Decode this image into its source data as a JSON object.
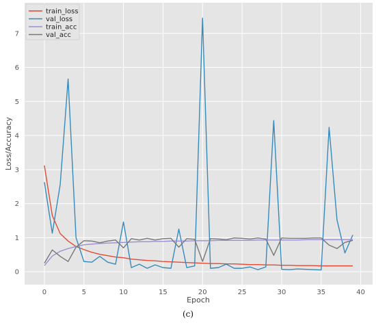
{
  "chart_data": {
    "type": "line",
    "title": "",
    "xlabel": "Epoch",
    "ylabel": "Loss/Accuracy",
    "xlim": [
      -2.5,
      41.5
    ],
    "ylim": [
      -0.38,
      7.9
    ],
    "xticks": [
      0,
      5,
      10,
      15,
      20,
      25,
      30,
      35,
      40
    ],
    "yticks": [
      0,
      1,
      2,
      3,
      4,
      5,
      6,
      7
    ],
    "grid": true,
    "legend": "top-left",
    "x": [
      0,
      1,
      2,
      3,
      4,
      5,
      6,
      7,
      8,
      9,
      10,
      11,
      12,
      13,
      14,
      15,
      16,
      17,
      18,
      19,
      20,
      21,
      22,
      23,
      24,
      25,
      26,
      27,
      28,
      29,
      30,
      31,
      32,
      33,
      34,
      35,
      36,
      37,
      38,
      39
    ],
    "series": [
      {
        "name": "train_loss",
        "color": "#e24a33",
        "values": [
          3.12,
          1.65,
          1.12,
          0.9,
          0.74,
          0.65,
          0.57,
          0.51,
          0.47,
          0.43,
          0.41,
          0.37,
          0.35,
          0.33,
          0.32,
          0.3,
          0.29,
          0.28,
          0.27,
          0.26,
          0.25,
          0.24,
          0.24,
          0.23,
          0.23,
          0.22,
          0.21,
          0.21,
          0.2,
          0.2,
          0.19,
          0.19,
          0.18,
          0.18,
          0.18,
          0.17,
          0.17,
          0.17,
          0.17,
          0.17
        ]
      },
      {
        "name": "val_loss",
        "color": "#348abd",
        "values": [
          2.63,
          1.13,
          2.56,
          5.66,
          1.0,
          0.3,
          0.28,
          0.45,
          0.28,
          0.22,
          1.46,
          0.12,
          0.22,
          0.1,
          0.2,
          0.12,
          0.1,
          1.25,
          0.12,
          0.17,
          7.45,
          0.1,
          0.12,
          0.22,
          0.1,
          0.1,
          0.14,
          0.06,
          0.14,
          4.44,
          0.07,
          0.06,
          0.08,
          0.07,
          0.06,
          0.05,
          4.24,
          1.52,
          0.55,
          1.08
        ]
      },
      {
        "name": "train_acc",
        "color": "#988ed5",
        "values": [
          0.18,
          0.46,
          0.6,
          0.68,
          0.74,
          0.79,
          0.81,
          0.83,
          0.84,
          0.85,
          0.86,
          0.87,
          0.88,
          0.88,
          0.89,
          0.89,
          0.9,
          0.9,
          0.9,
          0.91,
          0.91,
          0.91,
          0.92,
          0.92,
          0.92,
          0.92,
          0.92,
          0.93,
          0.93,
          0.93,
          0.93,
          0.93,
          0.93,
          0.94,
          0.94,
          0.94,
          0.94,
          0.94,
          0.94,
          0.94
        ]
      },
      {
        "name": "val_acc",
        "color": "#777777",
        "values": [
          0.25,
          0.64,
          0.45,
          0.3,
          0.72,
          0.91,
          0.9,
          0.85,
          0.9,
          0.93,
          0.7,
          0.97,
          0.93,
          0.98,
          0.93,
          0.97,
          0.98,
          0.72,
          0.97,
          0.95,
          0.3,
          0.97,
          0.96,
          0.94,
          0.99,
          0.98,
          0.96,
          0.99,
          0.96,
          0.48,
          0.99,
          0.98,
          0.98,
          0.98,
          0.99,
          0.99,
          0.78,
          0.68,
          0.86,
          0.92
        ]
      }
    ]
  },
  "caption": "(c)"
}
